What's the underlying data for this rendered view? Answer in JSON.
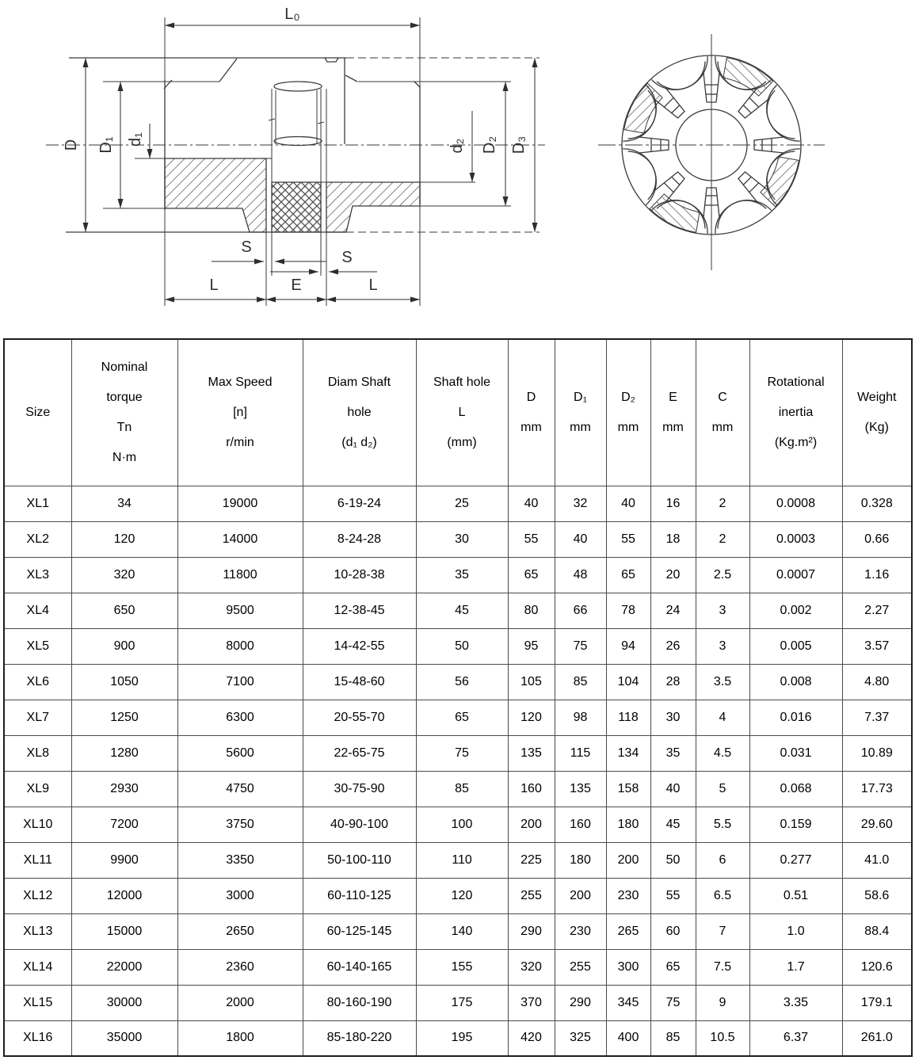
{
  "drawing": {
    "dim_labels": {
      "l0": "L₀",
      "d_outer": "D",
      "d1_hub": "D₁",
      "d1_bore": "d₁",
      "d2_bore": "d₂",
      "d2_hub": "D₂",
      "d3_flange": "D₃",
      "s_left": "S",
      "s_right": "S",
      "l_left": "L",
      "e_mid": "E",
      "l_right": "L"
    }
  },
  "table": {
    "columns": [
      {
        "id": "size",
        "lines": [
          "Size"
        ]
      },
      {
        "id": "nominal-torque",
        "lines": [
          "Nominal",
          "torque",
          "Tn",
          "N·m"
        ]
      },
      {
        "id": "max-speed",
        "lines": [
          "Max Speed",
          "[n]",
          "r/min"
        ]
      },
      {
        "id": "diam-shaft-hole",
        "lines": [
          "Diam Shaft",
          "hole",
          "(d₁ d₂)"
        ]
      },
      {
        "id": "shaft-hole-l",
        "lines": [
          "Shaft hole",
          "L",
          "(mm)"
        ]
      },
      {
        "id": "d",
        "lines": [
          "D",
          "mm"
        ]
      },
      {
        "id": "d1",
        "lines": [
          "D₁",
          "mm"
        ]
      },
      {
        "id": "d2",
        "lines": [
          "D₂",
          "mm"
        ]
      },
      {
        "id": "e",
        "lines": [
          "E",
          "mm"
        ]
      },
      {
        "id": "c",
        "lines": [
          "C",
          "mm"
        ]
      },
      {
        "id": "rotational-inertia",
        "lines": [
          "Rotational",
          "inertia",
          "(Kg.m²)"
        ]
      },
      {
        "id": "weight",
        "lines": [
          "Weight",
          "(Kg)"
        ]
      }
    ],
    "rows": [
      [
        "XL1",
        "34",
        "19000",
        "6-19-24",
        "25",
        "40",
        "32",
        "40",
        "16",
        "2",
        "0.0008",
        "0.328"
      ],
      [
        "XL2",
        "120",
        "14000",
        "8-24-28",
        "30",
        "55",
        "40",
        "55",
        "18",
        "2",
        "0.0003",
        "0.66"
      ],
      [
        "XL3",
        "320",
        "11800",
        "10-28-38",
        "35",
        "65",
        "48",
        "65",
        "20",
        "2.5",
        "0.0007",
        "1.16"
      ],
      [
        "XL4",
        "650",
        "9500",
        "12-38-45",
        "45",
        "80",
        "66",
        "78",
        "24",
        "3",
        "0.002",
        "2.27"
      ],
      [
        "XL5",
        "900",
        "8000",
        "14-42-55",
        "50",
        "95",
        "75",
        "94",
        "26",
        "3",
        "0.005",
        "3.57"
      ],
      [
        "XL6",
        "1050",
        "7100",
        "15-48-60",
        "56",
        "105",
        "85",
        "104",
        "28",
        "3.5",
        "0.008",
        "4.80"
      ],
      [
        "XL7",
        "1250",
        "6300",
        "20-55-70",
        "65",
        "120",
        "98",
        "118",
        "30",
        "4",
        "0.016",
        "7.37"
      ],
      [
        "XL8",
        "1280",
        "5600",
        "22-65-75",
        "75",
        "135",
        "115",
        "134",
        "35",
        "4.5",
        "0.031",
        "10.89"
      ],
      [
        "XL9",
        "2930",
        "4750",
        "30-75-90",
        "85",
        "160",
        "135",
        "158",
        "40",
        "5",
        "0.068",
        "17.73"
      ],
      [
        "XL10",
        "7200",
        "3750",
        "40-90-100",
        "100",
        "200",
        "160",
        "180",
        "45",
        "5.5",
        "0.159",
        "29.60"
      ],
      [
        "XL11",
        "9900",
        "3350",
        "50-100-110",
        "110",
        "225",
        "180",
        "200",
        "50",
        "6",
        "0.277",
        "41.0"
      ],
      [
        "XL12",
        "12000",
        "3000",
        "60-110-125",
        "120",
        "255",
        "200",
        "230",
        "55",
        "6.5",
        "0.51",
        "58.6"
      ],
      [
        "XL13",
        "15000",
        "2650",
        "60-125-145",
        "140",
        "290",
        "230",
        "265",
        "60",
        "7",
        "1.0",
        "88.4"
      ],
      [
        "XL14",
        "22000",
        "2360",
        "60-140-165",
        "155",
        "320",
        "255",
        "300",
        "65",
        "7.5",
        "1.7",
        "120.6"
      ],
      [
        "XL15",
        "30000",
        "2000",
        "80-160-190",
        "175",
        "370",
        "290",
        "345",
        "75",
        "9",
        "3.35",
        "179.1"
      ],
      [
        "XL16",
        "35000",
        "1800",
        "85-180-220",
        "195",
        "420",
        "325",
        "400",
        "85",
        "10.5",
        "6.37",
        "261.0"
      ]
    ]
  }
}
